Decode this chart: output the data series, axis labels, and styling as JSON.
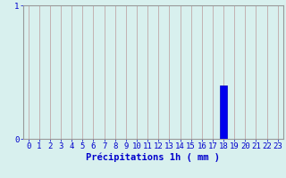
{
  "hours": [
    0,
    1,
    2,
    3,
    4,
    5,
    6,
    7,
    8,
    9,
    10,
    11,
    12,
    13,
    14,
    15,
    16,
    17,
    18,
    19,
    20,
    21,
    22,
    23
  ],
  "values": [
    0,
    0,
    0,
    0,
    0,
    0,
    0,
    0,
    0,
    0,
    0,
    0,
    0,
    0,
    0,
    0,
    0,
    0,
    0.4,
    0,
    0,
    0,
    0,
    0
  ],
  "bar_color": "#0000ee",
  "bar_edge_color": "#0000bb",
  "background_color": "#d8f0ee",
  "grid_color": "#c0a8a8",
  "axis_label_color": "#0000cc",
  "tick_label_color": "#0000cc",
  "xlabel": "Précipitations 1h ( mm )",
  "ylim": [
    0,
    1
  ],
  "xlim": [
    -0.5,
    23.5
  ],
  "yticks": [
    0,
    1
  ],
  "ytick_labels": [
    "0",
    "1"
  ],
  "label_fontsize": 7.5,
  "tick_fontsize": 6.5
}
